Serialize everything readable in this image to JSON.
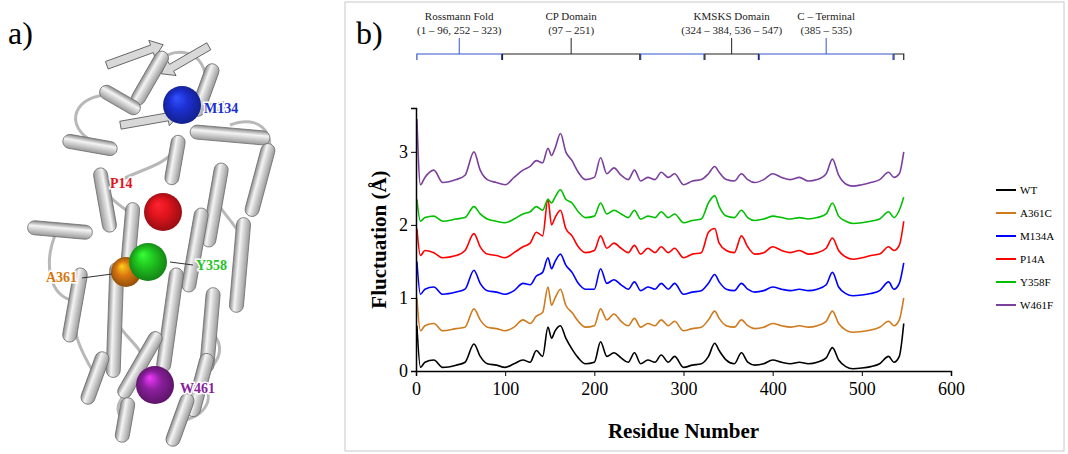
{
  "panel_labels": [
    "a)",
    "b)"
  ],
  "panel_a": {
    "residues": [
      {
        "label": "M134",
        "color": "#1c2fd0"
      },
      {
        "label": "P14",
        "color": "#e0141c"
      },
      {
        "label": "A361",
        "color": "#d9760f"
      },
      {
        "label": "Y358",
        "color": "#1fc41f"
      },
      {
        "label": "W461",
        "color": "#8a1f9c"
      }
    ]
  },
  "chart_data": {
    "type": "line",
    "x_label": "Residue Number",
    "y_label": "Fluctuation (Å)",
    "xlim": [
      0,
      600
    ],
    "xticks": [
      0,
      100,
      200,
      300,
      400,
      500,
      600
    ],
    "ylim": [
      0,
      3.6
    ],
    "yticks": [
      0,
      1,
      2,
      3
    ],
    "legend": "right",
    "annotations": [
      {
        "label": "Rossmann Fold",
        "range_label": "(1 – 96, 252 – 323)",
        "ranges": [
          [
            1,
            96
          ],
          [
            252,
            323
          ]
        ],
        "color": "#3355cc"
      },
      {
        "label": "CP Domain",
        "range_label": "(97 – 251)",
        "ranges": [
          [
            97,
            251
          ]
        ],
        "color": "#222222"
      },
      {
        "label": "KMSKS Domain",
        "range_label": "(324 – 384, 536 – 547)",
        "ranges": [
          [
            324,
            384
          ],
          [
            536,
            547
          ]
        ],
        "color": "#222222"
      },
      {
        "label": "C – Terminal",
        "range_label": "(385 – 535)",
        "ranges": [
          [
            385,
            535
          ]
        ],
        "color": "#3355cc"
      }
    ],
    "x": [
      1,
      5,
      10,
      20,
      30,
      45,
      55,
      65,
      72,
      80,
      90,
      100,
      110,
      120,
      128,
      135,
      142,
      148,
      152,
      156,
      162,
      168,
      175,
      182,
      190,
      200,
      207,
      214,
      222,
      230,
      238,
      245,
      252,
      260,
      268,
      275,
      283,
      290,
      300,
      310,
      320,
      328,
      335,
      340,
      348,
      357,
      365,
      372,
      380,
      390,
      400,
      410,
      420,
      430,
      440,
      450,
      460,
      467,
      474,
      482,
      490,
      500,
      510,
      520,
      530,
      536,
      542,
      547
    ],
    "series": [
      {
        "name": "WT",
        "color": "#000000",
        "values": [
          0.62,
          0.05,
          0.12,
          0.15,
          0.05,
          0.08,
          0.12,
          0.37,
          0.2,
          0.1,
          0.08,
          0.05,
          0.1,
          0.15,
          0.12,
          0.28,
          0.2,
          0.6,
          0.45,
          0.55,
          0.62,
          0.45,
          0.3,
          0.18,
          0.1,
          0.12,
          0.4,
          0.2,
          0.25,
          0.18,
          0.12,
          0.25,
          0.1,
          0.15,
          0.12,
          0.22,
          0.12,
          0.2,
          0.05,
          0.08,
          0.1,
          0.2,
          0.38,
          0.28,
          0.15,
          0.1,
          0.25,
          0.12,
          0.08,
          0.1,
          0.15,
          0.12,
          0.1,
          0.12,
          0.1,
          0.12,
          0.18,
          0.32,
          0.15,
          0.06,
          0.03,
          0.04,
          0.06,
          0.1,
          0.2,
          0.12,
          0.2,
          0.65
        ]
      },
      {
        "name": "A361C",
        "color": "#d07a1e",
        "values": [
          1.0,
          0.55,
          0.62,
          0.65,
          0.55,
          0.58,
          0.6,
          0.85,
          0.7,
          0.6,
          0.58,
          0.55,
          0.6,
          0.7,
          0.65,
          0.75,
          0.8,
          1.15,
          0.9,
          1.0,
          1.12,
          0.9,
          0.8,
          0.68,
          0.6,
          0.62,
          0.85,
          0.7,
          0.78,
          0.68,
          0.62,
          0.72,
          0.6,
          0.65,
          0.62,
          0.7,
          0.62,
          0.68,
          0.55,
          0.58,
          0.6,
          0.7,
          0.82,
          0.72,
          0.62,
          0.6,
          0.7,
          0.62,
          0.58,
          0.6,
          0.65,
          0.62,
          0.6,
          0.62,
          0.6,
          0.62,
          0.68,
          0.82,
          0.65,
          0.56,
          0.53,
          0.54,
          0.56,
          0.6,
          0.68,
          0.62,
          0.7,
          1.0
        ]
      },
      {
        "name": "M134A",
        "color": "#0000ff",
        "values": [
          1.5,
          1.05,
          1.12,
          1.15,
          1.05,
          1.08,
          1.12,
          1.38,
          1.2,
          1.1,
          1.08,
          1.05,
          1.1,
          1.2,
          1.18,
          1.3,
          1.35,
          1.55,
          1.4,
          1.5,
          1.6,
          1.45,
          1.35,
          1.2,
          1.12,
          1.12,
          1.4,
          1.2,
          1.25,
          1.18,
          1.12,
          1.22,
          1.1,
          1.15,
          1.12,
          1.2,
          1.12,
          1.2,
          1.05,
          1.08,
          1.1,
          1.2,
          1.32,
          1.22,
          1.12,
          1.1,
          1.2,
          1.12,
          1.08,
          1.1,
          1.15,
          1.12,
          1.1,
          1.12,
          1.1,
          1.12,
          1.18,
          1.35,
          1.15,
          1.06,
          1.03,
          1.04,
          1.06,
          1.1,
          1.22,
          1.12,
          1.2,
          1.48
        ]
      },
      {
        "name": "P14A",
        "color": "#ff0000",
        "values": [
          1.95,
          1.58,
          1.65,
          1.62,
          1.55,
          1.58,
          1.65,
          1.88,
          1.7,
          1.6,
          1.58,
          1.55,
          1.62,
          1.7,
          1.75,
          1.9,
          1.85,
          2.35,
          2.0,
          2.1,
          2.2,
          1.95,
          1.85,
          1.7,
          1.62,
          1.65,
          1.85,
          1.68,
          1.75,
          1.68,
          1.62,
          1.72,
          1.6,
          1.68,
          1.62,
          1.7,
          1.62,
          1.68,
          1.55,
          1.6,
          1.62,
          1.9,
          1.95,
          1.75,
          1.65,
          1.62,
          1.85,
          1.7,
          1.6,
          1.62,
          1.7,
          1.65,
          1.62,
          1.65,
          1.6,
          1.62,
          1.68,
          1.82,
          1.65,
          1.56,
          1.53,
          1.55,
          1.58,
          1.6,
          1.7,
          1.65,
          1.72,
          2.05
        ]
      },
      {
        "name": "Y358F",
        "color": "#00c000",
        "values": [
          2.35,
          2.05,
          2.1,
          2.12,
          2.05,
          2.08,
          2.1,
          2.25,
          2.15,
          2.08,
          2.05,
          2.03,
          2.08,
          2.15,
          2.18,
          2.25,
          2.2,
          2.35,
          2.3,
          2.38,
          2.48,
          2.35,
          2.3,
          2.18,
          2.1,
          2.12,
          2.3,
          2.15,
          2.2,
          2.15,
          2.1,
          2.2,
          2.08,
          2.12,
          2.1,
          2.18,
          2.1,
          2.15,
          2.03,
          2.06,
          2.08,
          2.3,
          2.4,
          2.25,
          2.12,
          2.1,
          2.2,
          2.1,
          2.06,
          2.08,
          2.12,
          2.1,
          2.08,
          2.1,
          2.08,
          2.1,
          2.15,
          2.3,
          2.12,
          2.05,
          2.02,
          2.03,
          2.05,
          2.08,
          2.18,
          2.1,
          2.2,
          2.38
        ]
      },
      {
        "name": "W461F",
        "color": "#7b3f9e",
        "values": [
          3.45,
          2.55,
          2.65,
          2.75,
          2.58,
          2.62,
          2.68,
          3.0,
          2.75,
          2.62,
          2.58,
          2.55,
          2.65,
          2.75,
          2.8,
          2.88,
          2.85,
          3.05,
          2.95,
          3.05,
          3.25,
          3.0,
          2.88,
          2.72,
          2.62,
          2.65,
          2.92,
          2.7,
          2.78,
          2.68,
          2.62,
          2.75,
          2.6,
          2.65,
          2.62,
          2.72,
          2.65,
          2.7,
          2.55,
          2.6,
          2.62,
          2.7,
          2.8,
          2.72,
          2.62,
          2.6,
          2.7,
          2.62,
          2.58,
          2.62,
          2.7,
          2.65,
          2.62,
          2.65,
          2.6,
          2.62,
          2.7,
          2.9,
          2.68,
          2.56,
          2.53,
          2.55,
          2.58,
          2.62,
          2.72,
          2.65,
          2.7,
          3.0
        ]
      }
    ]
  }
}
